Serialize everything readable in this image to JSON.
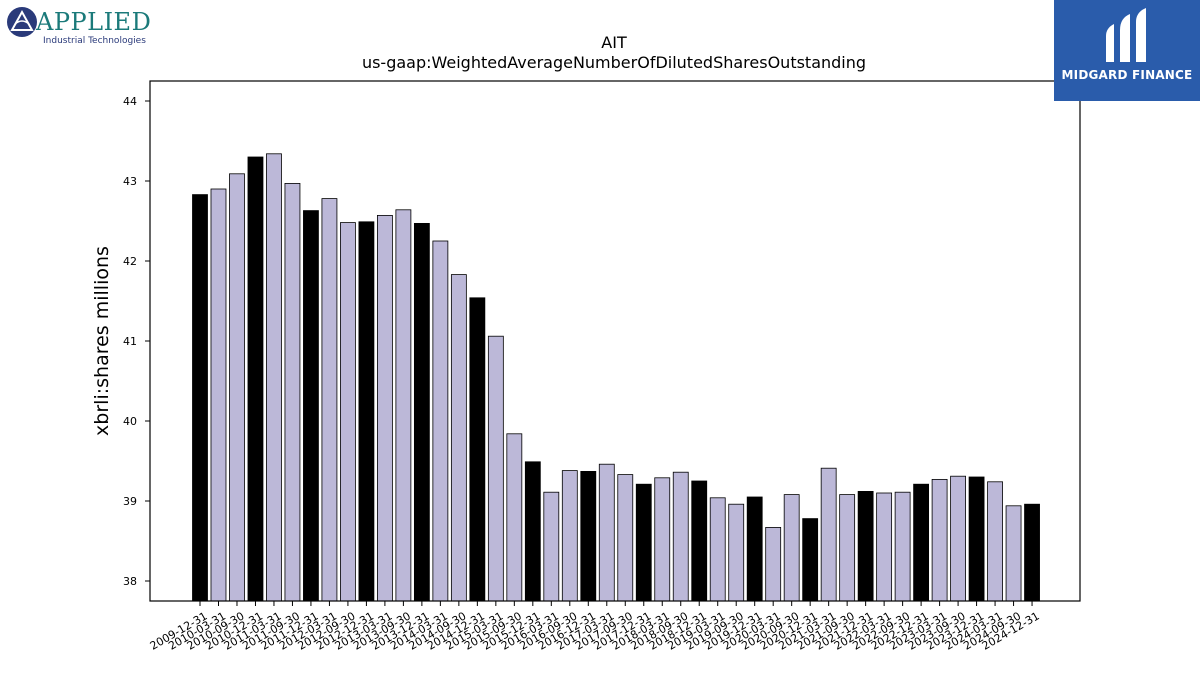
{
  "branding": {
    "left_logo_name": "APPLIED",
    "left_logo_tagline": "Industrial Technologies",
    "right_logo_name": "MIDGARD FINANCE",
    "brand_blue": "#2a5cab",
    "brand_teal": "#1b7a7a"
  },
  "chart_data": {
    "type": "bar",
    "title": "AIT",
    "subtitle": "us-gaap:WeightedAverageNumberOfDilutedSharesOutstanding",
    "xlabel": "",
    "ylabel": "xbrli:shares millions",
    "ylim": [
      37.75,
      44.25
    ],
    "yticks": [
      38,
      39,
      40,
      41,
      42,
      43,
      44
    ],
    "grid": false,
    "categories": [
      "2009-12-31",
      "2010-03-31",
      "2010-09-30",
      "2010-12-31",
      "2011-03-31",
      "2011-09-30",
      "2011-12-31",
      "2012-03-31",
      "2012-09-30",
      "2012-12-31",
      "2013-03-31",
      "2013-09-30",
      "2013-12-31",
      "2014-03-31",
      "2014-09-30",
      "2014-12-31",
      "2015-03-31",
      "2015-09-30",
      "2015-12-31",
      "2016-03-31",
      "2016-09-30",
      "2016-12-31",
      "2017-03-31",
      "2017-09-30",
      "2017-12-31",
      "2018-03-31",
      "2018-09-30",
      "2018-12-31",
      "2019-03-31",
      "2019-09-30",
      "2019-12-31",
      "2020-03-31",
      "2020-09-30",
      "2020-12-31",
      "2021-03-31",
      "2021-09-30",
      "2021-12-31",
      "2022-03-31",
      "2022-09-30",
      "2022-12-31",
      "2023-03-31",
      "2023-09-30",
      "2023-12-31",
      "2024-03-31",
      "2024-09-30",
      "2024-12-31"
    ],
    "values": [
      42.83,
      42.9,
      43.09,
      43.3,
      43.34,
      42.97,
      42.63,
      42.78,
      42.48,
      42.49,
      42.57,
      42.64,
      42.47,
      42.25,
      41.83,
      41.54,
      41.06,
      39.84,
      39.49,
      39.11,
      39.38,
      39.37,
      39.46,
      39.33,
      39.21,
      39.29,
      39.36,
      39.25,
      39.04,
      38.96,
      39.05,
      38.67,
      39.08,
      38.78,
      39.41,
      39.08,
      39.12,
      39.1,
      39.11,
      39.21,
      39.27,
      39.31,
      39.3,
      39.24,
      38.94,
      38.96
    ],
    "highlight": [
      true,
      false,
      false,
      true,
      false,
      false,
      true,
      false,
      false,
      true,
      false,
      false,
      true,
      false,
      false,
      true,
      false,
      false,
      true,
      false,
      false,
      true,
      false,
      false,
      true,
      false,
      false,
      true,
      false,
      false,
      true,
      false,
      false,
      true,
      false,
      false,
      true,
      false,
      false,
      true,
      false,
      false,
      true,
      false,
      false,
      true
    ],
    "colors": {
      "highlight": "#000000",
      "normal": "#bcb8d8",
      "edge": "#000000"
    }
  }
}
